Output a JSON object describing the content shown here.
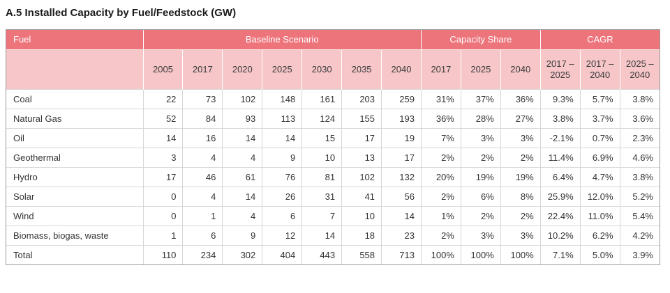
{
  "page": {
    "title": "A.5 Installed Capacity by Fuel/Feedstock (GW)"
  },
  "colors": {
    "header_dark": "#ED747B",
    "header_light": "#F6C6C9",
    "grid_line": "#D6D6D6",
    "outer_border": "#9B9B9B",
    "header_text": "#FFFFFF",
    "body_text": "#333333"
  },
  "table": {
    "group_headers": [
      {
        "label": "Fuel",
        "colspan": 1
      },
      {
        "label": "Baseline Scenario",
        "colspan": 7
      },
      {
        "label": "Capacity Share",
        "colspan": 3
      },
      {
        "label": "CAGR",
        "colspan": 3
      }
    ],
    "sub_headers": [
      "",
      "2005",
      "2017",
      "2020",
      "2025",
      "2030",
      "2035",
      "2040",
      "2017",
      "2025",
      "2040",
      "2017 –\n2025",
      "2017 –\n2040",
      "2025 –\n2040"
    ],
    "rows": [
      {
        "fuel": "Coal",
        "values": [
          "22",
          "73",
          "102",
          "148",
          "161",
          "203",
          "259",
          "31%",
          "37%",
          "36%",
          "9.3%",
          "5.7%",
          "3.8%"
        ]
      },
      {
        "fuel": "Natural Gas",
        "values": [
          "52",
          "84",
          "93",
          "113",
          "124",
          "155",
          "193",
          "36%",
          "28%",
          "27%",
          "3.8%",
          "3.7%",
          "3.6%"
        ]
      },
      {
        "fuel": "Oil",
        "values": [
          "14",
          "16",
          "14",
          "14",
          "15",
          "17",
          "19",
          "7%",
          "3%",
          "3%",
          "-2.1%",
          "0.7%",
          "2.3%"
        ]
      },
      {
        "fuel": "Geothermal",
        "values": [
          "3",
          "4",
          "4",
          "9",
          "10",
          "13",
          "17",
          "2%",
          "2%",
          "2%",
          "11.4%",
          "6.9%",
          "4.6%"
        ]
      },
      {
        "fuel": "Hydro",
        "values": [
          "17",
          "46",
          "61",
          "76",
          "81",
          "102",
          "132",
          "20%",
          "19%",
          "19%",
          "6.4%",
          "4.7%",
          "3.8%"
        ]
      },
      {
        "fuel": "Solar",
        "values": [
          "0",
          "4",
          "14",
          "26",
          "31",
          "41",
          "56",
          "2%",
          "6%",
          "8%",
          "25.9%",
          "12.0%",
          "5.2%"
        ]
      },
      {
        "fuel": "Wind",
        "values": [
          "0",
          "1",
          "4",
          "6",
          "7",
          "10",
          "14",
          "1%",
          "2%",
          "2%",
          "22.4%",
          "11.0%",
          "5.4%"
        ]
      },
      {
        "fuel": "Biomass, biogas, waste",
        "values": [
          "1",
          "6",
          "9",
          "12",
          "14",
          "18",
          "23",
          "2%",
          "3%",
          "3%",
          "10.2%",
          "6.2%",
          "4.2%"
        ]
      },
      {
        "fuel": "Total",
        "values": [
          "110",
          "234",
          "302",
          "404",
          "443",
          "558",
          "713",
          "100%",
          "100%",
          "100%",
          "7.1%",
          "5.0%",
          "3.9%"
        ]
      }
    ]
  }
}
